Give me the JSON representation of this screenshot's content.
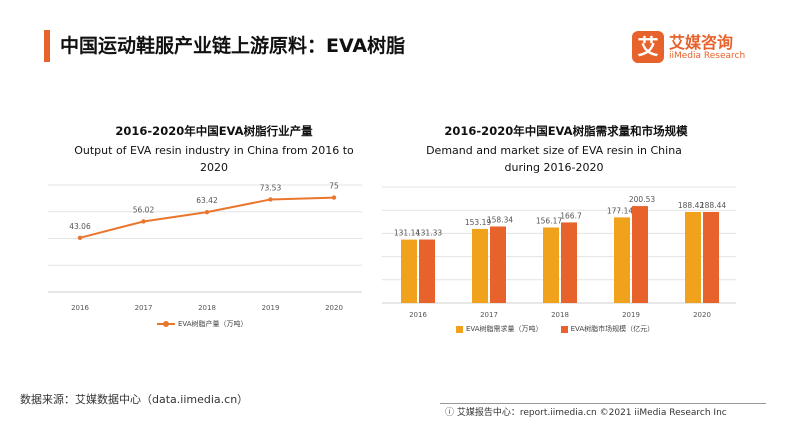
{
  "page": {
    "title": "中国运动鞋服产业链上游原料：EVA树脂",
    "source": "数据来源：艾媒数据中心（data.iimedia.cn）",
    "footer": "ⓘ 艾媒报告中心：report.iimedia.cn  ©2021  iiMedia Research  Inc"
  },
  "logo": {
    "mark": "艾",
    "cn": "艾媒咨询",
    "en": "iiMedia Research"
  },
  "colors": {
    "accent": "#e8622b",
    "line": "#e8762d",
    "bar1": "#f0a21c",
    "bar2": "#e8622b"
  },
  "chart_data": [
    {
      "type": "line",
      "title": "2016-2020年中国EVA树脂行业产量",
      "subtitle": "Output of EVA resin industry in China from 2016 to 2020",
      "categories": [
        "2016",
        "2017",
        "2018",
        "2019",
        "2020"
      ],
      "series": [
        {
          "name": "EVA树脂产量（万吨）",
          "values": [
            43.06,
            56.02,
            63.42,
            73.53,
            75
          ]
        }
      ],
      "ylim": [
        0,
        85
      ],
      "grid": true,
      "legend": "bottom"
    },
    {
      "type": "bar",
      "title": "2016-2020年中国EVA树脂需求量和市场规模",
      "subtitle": "Demand and market size of EVA resin in China during 2016-2020",
      "categories": [
        "2016",
        "2017",
        "2018",
        "2019",
        "2020"
      ],
      "series": [
        {
          "name": "EVA树脂需求量（万吨）",
          "values": [
            131.14,
            153.19,
            156.17,
            177.14,
            188.42
          ]
        },
        {
          "name": "EVA树脂市场规模（亿元）",
          "values": [
            131.33,
            158.34,
            166.7,
            200.53,
            188.44
          ]
        }
      ],
      "ylim": [
        0,
        240
      ],
      "grid": true,
      "legend": "bottom"
    }
  ]
}
